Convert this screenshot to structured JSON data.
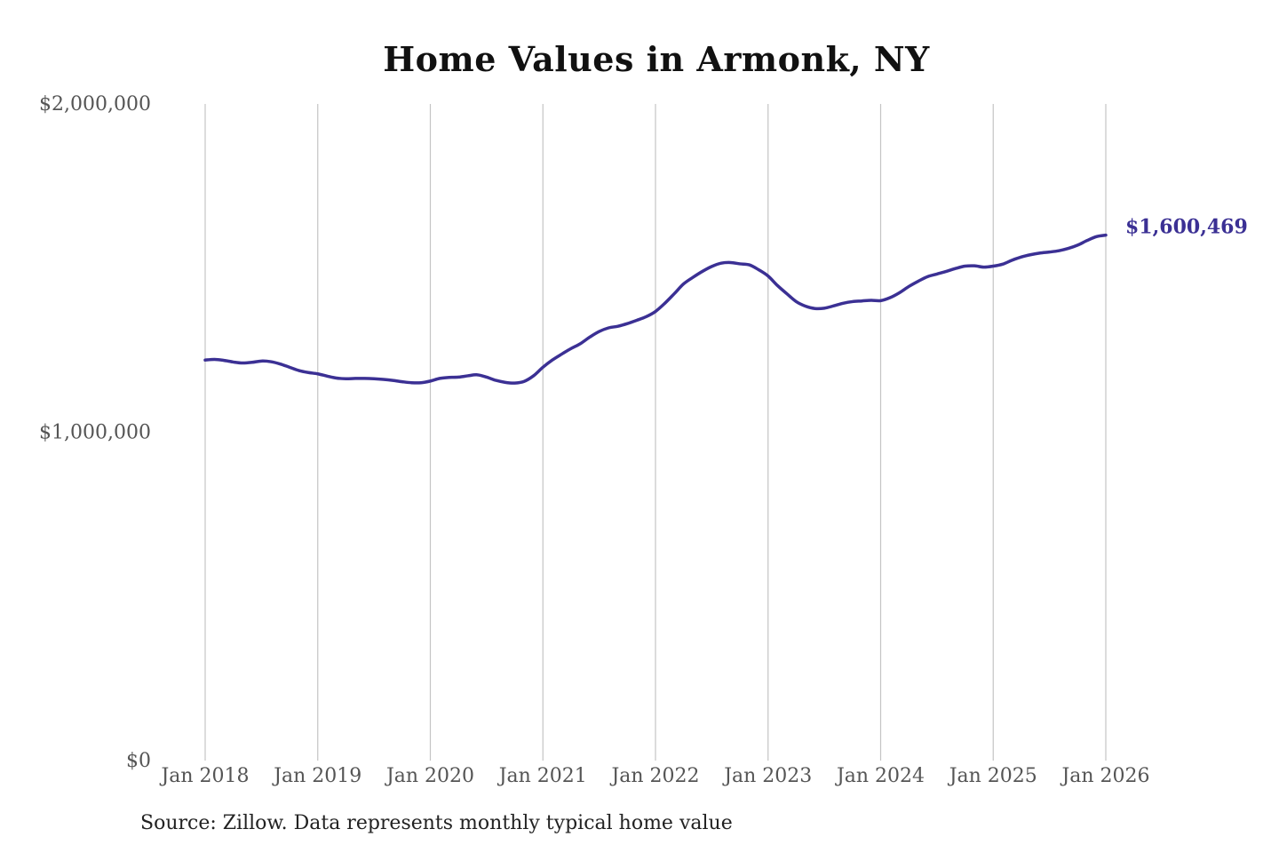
{
  "chart_data": {
    "type": "line",
    "title": "Home Values in Armonk, NY",
    "xlabel": "",
    "ylabel": "",
    "ylim": [
      0,
      2000000
    ],
    "y_ticks": [
      {
        "value": 0,
        "label": "$0"
      },
      {
        "value": 1000000,
        "label": "$1,000,000"
      },
      {
        "value": 2000000,
        "label": "$2,000,000"
      }
    ],
    "x_range": [
      "2018-01",
      "2026-01"
    ],
    "x_ticks": [
      {
        "date": "2018-01",
        "label": "Jan 2018"
      },
      {
        "date": "2019-01",
        "label": "Jan 2019"
      },
      {
        "date": "2020-01",
        "label": "Jan 2020"
      },
      {
        "date": "2021-01",
        "label": "Jan 2021"
      },
      {
        "date": "2022-01",
        "label": "Jan 2022"
      },
      {
        "date": "2023-01",
        "label": "Jan 2023"
      },
      {
        "date": "2024-01",
        "label": "Jan 2024"
      },
      {
        "date": "2025-01",
        "label": "Jan 2025"
      },
      {
        "date": "2026-01",
        "label": "Jan 2026"
      }
    ],
    "grid": {
      "vertical": true,
      "horizontal": false
    },
    "legend": "none",
    "line_color": "#3b3094",
    "end_label": "$1,600,469",
    "series": [
      {
        "points": [
          [
            "2018-01",
            1220000
          ],
          [
            "2018-02",
            1222000
          ],
          [
            "2018-03",
            1219000
          ],
          [
            "2018-04",
            1214000
          ],
          [
            "2018-05",
            1211000
          ],
          [
            "2018-06",
            1213000
          ],
          [
            "2018-07",
            1217000
          ],
          [
            "2018-08",
            1215000
          ],
          [
            "2018-09",
            1208000
          ],
          [
            "2018-10",
            1198000
          ],
          [
            "2018-11",
            1188000
          ],
          [
            "2018-12",
            1182000
          ],
          [
            "2019-01",
            1178000
          ],
          [
            "2019-02",
            1171000
          ],
          [
            "2019-03",
            1165000
          ],
          [
            "2019-04",
            1163000
          ],
          [
            "2019-05",
            1164000
          ],
          [
            "2019-06",
            1164000
          ],
          [
            "2019-07",
            1163000
          ],
          [
            "2019-08",
            1161000
          ],
          [
            "2019-09",
            1158000
          ],
          [
            "2019-10",
            1154000
          ],
          [
            "2019-11",
            1151000
          ],
          [
            "2019-12",
            1151000
          ],
          [
            "2020-01",
            1156000
          ],
          [
            "2020-02",
            1164000
          ],
          [
            "2020-03",
            1167000
          ],
          [
            "2020-04",
            1168000
          ],
          [
            "2020-05",
            1172000
          ],
          [
            "2020-06",
            1175000
          ],
          [
            "2020-07",
            1168000
          ],
          [
            "2020-08",
            1158000
          ],
          [
            "2020-09",
            1152000
          ],
          [
            "2020-10",
            1150000
          ],
          [
            "2020-11",
            1155000
          ],
          [
            "2020-12",
            1172000
          ],
          [
            "2021-01",
            1198000
          ],
          [
            "2021-02",
            1220000
          ],
          [
            "2021-03",
            1238000
          ],
          [
            "2021-04",
            1255000
          ],
          [
            "2021-05",
            1270000
          ],
          [
            "2021-06",
            1290000
          ],
          [
            "2021-07",
            1307000
          ],
          [
            "2021-08",
            1318000
          ],
          [
            "2021-09",
            1323000
          ],
          [
            "2021-10",
            1331000
          ],
          [
            "2021-11",
            1341000
          ],
          [
            "2021-12",
            1352000
          ],
          [
            "2022-01",
            1368000
          ],
          [
            "2022-02",
            1393000
          ],
          [
            "2022-03",
            1422000
          ],
          [
            "2022-04",
            1452000
          ],
          [
            "2022-05",
            1472000
          ],
          [
            "2022-06",
            1490000
          ],
          [
            "2022-07",
            1505000
          ],
          [
            "2022-08",
            1515000
          ],
          [
            "2022-09",
            1517000
          ],
          [
            "2022-10",
            1513000
          ],
          [
            "2022-11",
            1510000
          ],
          [
            "2022-12",
            1495000
          ],
          [
            "2023-01",
            1476000
          ],
          [
            "2023-02",
            1447000
          ],
          [
            "2023-03",
            1422000
          ],
          [
            "2023-04",
            1398000
          ],
          [
            "2023-05",
            1384000
          ],
          [
            "2023-06",
            1377000
          ],
          [
            "2023-07",
            1378000
          ],
          [
            "2023-08",
            1385000
          ],
          [
            "2023-09",
            1393000
          ],
          [
            "2023-10",
            1398000
          ],
          [
            "2023-11",
            1400000
          ],
          [
            "2023-12",
            1402000
          ],
          [
            "2024-01",
            1401000
          ],
          [
            "2024-02",
            1410000
          ],
          [
            "2024-03",
            1425000
          ],
          [
            "2024-04",
            1444000
          ],
          [
            "2024-05",
            1460000
          ],
          [
            "2024-06",
            1474000
          ],
          [
            "2024-07",
            1482000
          ],
          [
            "2024-08",
            1490000
          ],
          [
            "2024-09",
            1499000
          ],
          [
            "2024-10",
            1506000
          ],
          [
            "2024-11",
            1507000
          ],
          [
            "2024-12",
            1503000
          ],
          [
            "2025-01",
            1506000
          ],
          [
            "2025-02",
            1512000
          ],
          [
            "2025-03",
            1524000
          ],
          [
            "2025-04",
            1534000
          ],
          [
            "2025-05",
            1541000
          ],
          [
            "2025-06",
            1546000
          ],
          [
            "2025-07",
            1549000
          ],
          [
            "2025-08",
            1553000
          ],
          [
            "2025-09",
            1560000
          ],
          [
            "2025-10",
            1570000
          ],
          [
            "2025-11",
            1584000
          ],
          [
            "2025-12",
            1596000
          ],
          [
            "2026-01",
            1600469
          ]
        ]
      }
    ]
  },
  "source_note": "Source: Zillow. Data represents monthly typical home value"
}
